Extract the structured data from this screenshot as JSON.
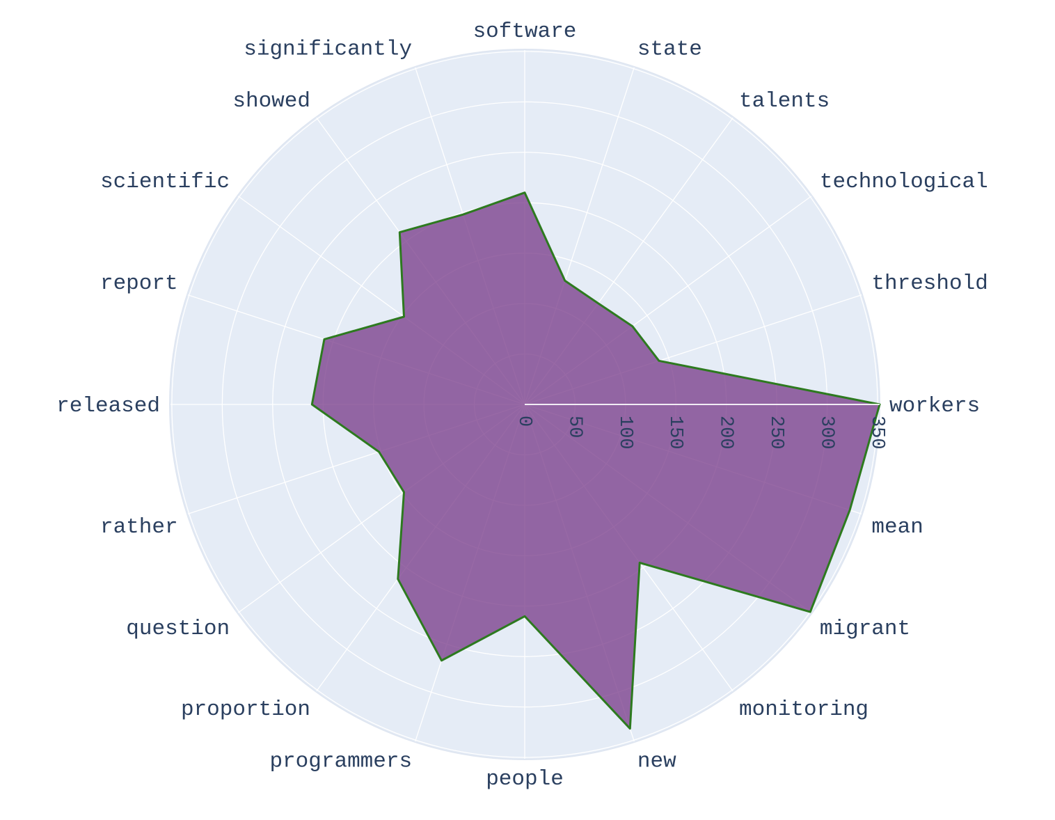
{
  "chart_data": {
    "type": "radar",
    "title": "",
    "categories": [
      "workers",
      "threshold",
      "technological",
      "talents",
      "state",
      "software",
      "significantly",
      "showed",
      "scientific",
      "report",
      "released",
      "rather",
      "question",
      "proportion",
      "programmers",
      "people",
      "new",
      "monitoring",
      "migrant",
      "mean"
    ],
    "series": [
      {
        "values": [
          352,
          140,
          132,
          124,
          129,
          210,
          198,
          211,
          148,
          209,
          211,
          152,
          148,
          214,
          267,
          210,
          338,
          194,
          350,
          339
        ]
      }
    ],
    "radial_ticks": [
      0,
      50,
      100,
      150,
      200,
      250,
      300,
      350
    ],
    "radial_range": [
      0,
      352
    ],
    "grid": true,
    "direction": "counterclockwise",
    "colors": {
      "fill": "#7b3f8c",
      "line": "#2d7a1f",
      "background": "#e5ecf6",
      "grid": "#ffffff",
      "text": "#2a3f5f"
    }
  }
}
